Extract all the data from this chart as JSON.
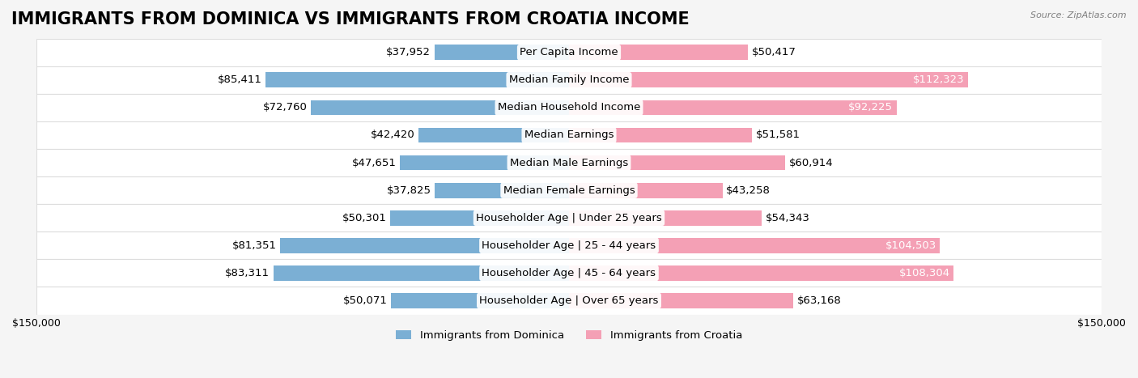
{
  "title": "IMMIGRANTS FROM DOMINICA VS IMMIGRANTS FROM CROATIA INCOME",
  "source": "Source: ZipAtlas.com",
  "categories": [
    "Per Capita Income",
    "Median Family Income",
    "Median Household Income",
    "Median Earnings",
    "Median Male Earnings",
    "Median Female Earnings",
    "Householder Age | Under 25 years",
    "Householder Age | 25 - 44 years",
    "Householder Age | 45 - 64 years",
    "Householder Age | Over 65 years"
  ],
  "dominica_values": [
    37952,
    85411,
    72760,
    42420,
    47651,
    37825,
    50301,
    81351,
    83311,
    50071
  ],
  "croatia_values": [
    50417,
    112323,
    92225,
    51581,
    60914,
    43258,
    54343,
    104503,
    108304,
    63168
  ],
  "dominica_labels": [
    "$37,952",
    "$85,411",
    "$72,760",
    "$42,420",
    "$47,651",
    "$37,825",
    "$50,301",
    "$81,351",
    "$83,311",
    "$50,071"
  ],
  "croatia_labels": [
    "$50,417",
    "$112,323",
    "$92,225",
    "$51,581",
    "$60,914",
    "$43,258",
    "$54,343",
    "$104,503",
    "$108,304",
    "$63,168"
  ],
  "dominica_color": "#7bafd4",
  "croatia_color": "#f4a0b5",
  "dominica_color_dark": "#5a8fbf",
  "croatia_color_dark": "#e8698a",
  "max_value": 150000,
  "legend_dominica": "Immigrants from Dominica",
  "legend_croatia": "Immigrants from Croatia",
  "bg_color": "#f5f5f5",
  "row_bg_color": "#ffffff",
  "bar_height": 0.55,
  "title_fontsize": 15,
  "label_fontsize": 9.5,
  "axis_label_fontsize": 9
}
